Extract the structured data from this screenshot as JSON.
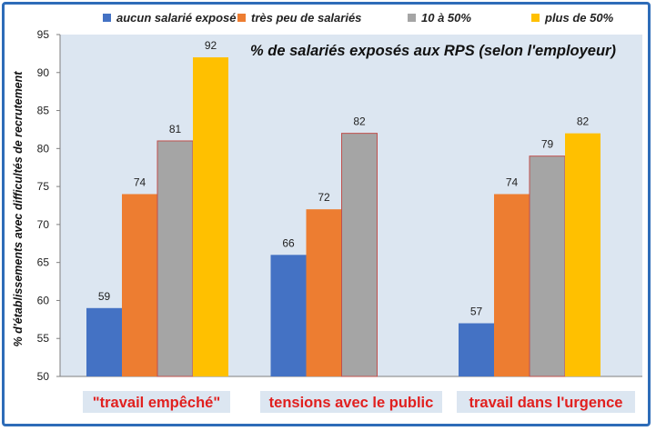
{
  "chart_data": {
    "type": "bar",
    "title": "% de salariés exposés aux RPS (selon l'employeur)",
    "ylabel": "% d'établissements avec difficultés de recrutement",
    "xlabel": "",
    "ylim": [
      50,
      95
    ],
    "yticks": [
      50,
      55,
      60,
      65,
      70,
      75,
      80,
      85,
      90,
      95
    ],
    "grid": false,
    "legend_position": "top",
    "categories": [
      "\"travail empêché\"",
      "tensions avec le public",
      "travail dans l'urgence"
    ],
    "series": [
      {
        "name": "aucun salarié exposé",
        "color": "#4472c4",
        "values": [
          59,
          66,
          57
        ]
      },
      {
        "name": "très peu de salariés",
        "color": "#ed7d31",
        "values": [
          74,
          72,
          74
        ]
      },
      {
        "name": "10 à 50%",
        "color": "#a5a5a5",
        "values": [
          81,
          82,
          79
        ]
      },
      {
        "name": "plus de 50%",
        "color": "#ffc000",
        "values": [
          92,
          null,
          82
        ]
      }
    ],
    "plot_background": "#dce6f1",
    "category_label_color": "#e1201f",
    "category_label_background": "#dce6f1",
    "border_color": "#2e6cb8"
  }
}
